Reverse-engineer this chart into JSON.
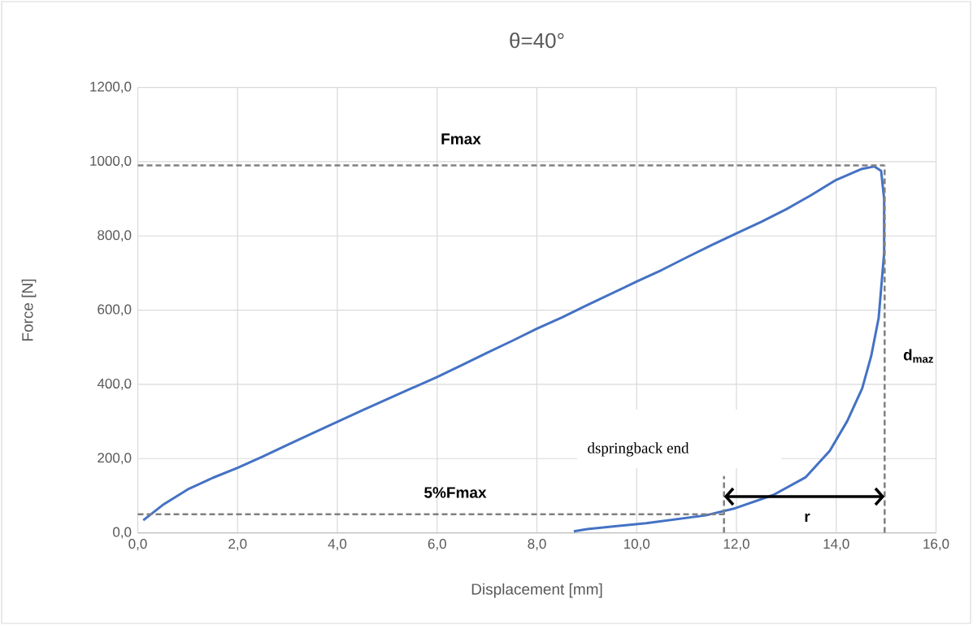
{
  "chart_data": {
    "type": "line",
    "title": "θ=40°",
    "xlabel": "Displacement [mm]",
    "ylabel": "Force [N]",
    "xlim": [
      0,
      16
    ],
    "ylim": [
      0,
      1200
    ],
    "xticks": [
      {
        "value": 0,
        "label": "0,0"
      },
      {
        "value": 2,
        "label": "2,0"
      },
      {
        "value": 4,
        "label": "4,0"
      },
      {
        "value": 6,
        "label": "6,0"
      },
      {
        "value": 8,
        "label": "8,0"
      },
      {
        "value": 10,
        "label": "10,0"
      },
      {
        "value": 12,
        "label": "12,0"
      },
      {
        "value": 14,
        "label": "14,0"
      },
      {
        "value": 16,
        "label": "16,0"
      }
    ],
    "yticks": [
      {
        "value": 0,
        "label": "0,0"
      },
      {
        "value": 200,
        "label": "200,0"
      },
      {
        "value": 400,
        "label": "400,0"
      },
      {
        "value": 600,
        "label": "600,0"
      },
      {
        "value": 800,
        "label": "800,0"
      },
      {
        "value": 1000,
        "label": "1000,0"
      },
      {
        "value": 1200,
        "label": "1200,0"
      }
    ],
    "grid": true,
    "marker": "none",
    "series": [
      {
        "color": "#4472c4",
        "line_style": "solid",
        "x": [
          0.11,
          0.5,
          1.0,
          1.5,
          2.0,
          2.5,
          3.0,
          3.5,
          4.0,
          4.5,
          5.0,
          5.5,
          6.0,
          6.5,
          7.0,
          7.5,
          8.0,
          8.5,
          9.0,
          9.5,
          10.0,
          10.5,
          11.0,
          11.5,
          12.0,
          12.5,
          13.0,
          13.5,
          14.0,
          14.5,
          14.76,
          14.9,
          14.96,
          14.96,
          14.85,
          14.7,
          14.52,
          14.22,
          13.87,
          13.39,
          12.74,
          11.97,
          11.38,
          10.19,
          9.01,
          8.74
        ],
        "values": [
          34,
          75,
          117,
          148,
          175,
          205,
          237,
          268,
          299,
          330,
          360,
          390,
          420,
          452,
          485,
          517,
          550,
          580,
          613,
          645,
          677,
          708,
          742,
          775,
          807,
          838,
          872,
          910,
          951,
          980,
          987,
          975,
          900,
          754,
          579,
          476,
          389,
          301,
          221,
          150,
          102,
          66,
          47,
          26,
          10,
          4
        ]
      },
      {
        "color": "#808080",
        "line_style": "dashed",
        "x": [
          0,
          14.97
        ],
        "values": [
          990,
          990
        ]
      },
      {
        "color": "#808080",
        "line_style": "dashed",
        "x": [
          14.97,
          14.97
        ],
        "values": [
          0,
          990
        ]
      },
      {
        "color": "#808080",
        "line_style": "dashed",
        "x": [
          0,
          11.75
        ],
        "values": [
          50,
          50
        ]
      },
      {
        "color": "#808080",
        "line_style": "dashed",
        "x": [
          11.75,
          11.75
        ],
        "values": [
          0,
          153
        ]
      }
    ],
    "annotations": [
      "Fmax",
      "5%Fmax",
      "dspringback end",
      "d$_{maz}$",
      "r"
    ]
  }
}
